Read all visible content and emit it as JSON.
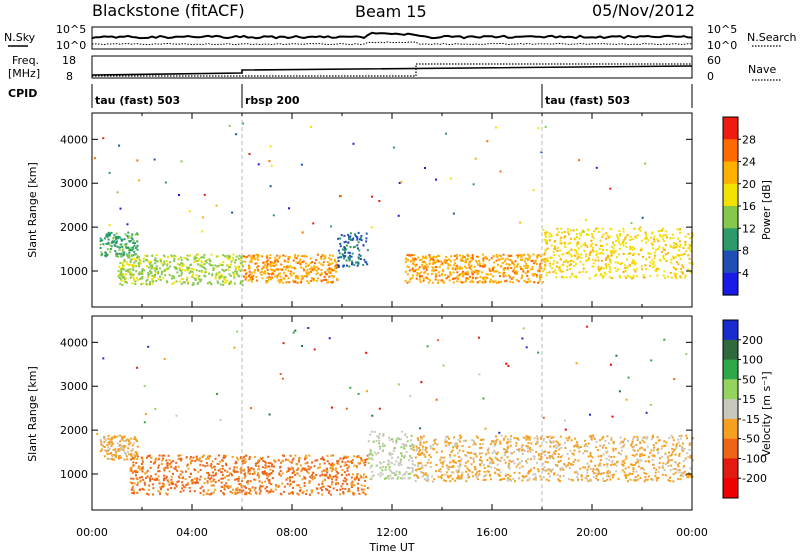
{
  "header": {
    "station": "Blackstone (fitACF)",
    "beam": "Beam 15",
    "date": "05/Nov/2012"
  },
  "strip_labels": {
    "nsky": "N.Sky",
    "nsearch": "N.Search",
    "freq_line1": "Freq.",
    "freq_line2": "[MHz]",
    "nave": "Nave",
    "cpid": "CPID",
    "noise_ticks_left": [
      "10^5",
      "10^0"
    ],
    "noise_ticks_right": [
      "10^5",
      "10^0"
    ],
    "freq_ticks": [
      "18",
      "8"
    ],
    "nave_ticks": [
      "60",
      "0"
    ]
  },
  "cpid_segments": [
    {
      "start_hour": 0,
      "end_hour": 6,
      "label": "tau (fast) 503"
    },
    {
      "start_hour": 6,
      "end_hour": 18,
      "label": "rbsp 200"
    },
    {
      "start_hour": 18,
      "end_hour": 24,
      "label": "tau (fast) 503"
    }
  ],
  "chart_data": [
    {
      "type": "heatmap",
      "title": "",
      "xlabel": "Time UT",
      "ylabel": "Slant Range [km]",
      "x_unit": "hour UT",
      "xlim": [
        0,
        24
      ],
      "ylim": [
        180,
        4600
      ],
      "x_ticks": [
        "00:00",
        "04:00",
        "08:00",
        "12:00",
        "16:00",
        "20:00",
        "00:00"
      ],
      "y_ticks": [
        "1000",
        "2000",
        "3000",
        "4000"
      ],
      "colorbar": {
        "label": "Power [dB]",
        "levels": [
          "28",
          "24",
          "20",
          "16",
          "12",
          "8",
          "4"
        ],
        "colors": [
          "#ee1c10",
          "#ff6a00",
          "#ffb000",
          "#f2e200",
          "#86c94a",
          "#2c9b6b",
          "#1f4fb4",
          "#1a1ae6"
        ]
      },
      "echo_bands": [
        {
          "hour_start": 0.3,
          "hour_end": 1.8,
          "range_low": 1350,
          "range_high": 1900,
          "value": "12"
        },
        {
          "hour_start": 1.0,
          "hour_end": 6.0,
          "range_low": 700,
          "range_high": 1400,
          "value": "16"
        },
        {
          "hour_start": 6.0,
          "hour_end": 9.8,
          "range_low": 750,
          "range_high": 1400,
          "value": "24"
        },
        {
          "hour_start": 9.8,
          "hour_end": 11.0,
          "range_low": 1100,
          "range_high": 1900,
          "value": "8"
        },
        {
          "hour_start": 12.5,
          "hour_end": 18.0,
          "range_low": 750,
          "range_high": 1400,
          "value": "24"
        },
        {
          "hour_start": 18.0,
          "hour_end": 24.0,
          "range_low": 850,
          "range_high": 2000,
          "value": "20"
        }
      ]
    },
    {
      "type": "heatmap",
      "title": "",
      "xlabel": "Time UT",
      "ylabel": "Slant Range [km]",
      "x_unit": "hour UT",
      "xlim": [
        0,
        24
      ],
      "ylim": [
        180,
        4600
      ],
      "x_ticks": [
        "00:00",
        "04:00",
        "08:00",
        "12:00",
        "16:00",
        "20:00",
        "00:00"
      ],
      "y_ticks": [
        "1000",
        "2000",
        "3000",
        "4000"
      ],
      "colorbar": {
        "label": "Velocity [m s⁻¹]",
        "levels": [
          "200",
          "100",
          "50",
          "15",
          "-15",
          "-50",
          "-100",
          "-200"
        ],
        "colors": [
          "#1a2bd0",
          "#2f6a3e",
          "#2fa84a",
          "#93d35e",
          "#c8c8be",
          "#f5a020",
          "#f06418",
          "#e21a10",
          "#ee0000"
        ]
      },
      "echo_bands": [
        {
          "hour_start": 0.3,
          "hour_end": 1.8,
          "range_low": 1350,
          "range_high": 1900,
          "value": "-15"
        },
        {
          "hour_start": 1.5,
          "hour_end": 11.0,
          "range_low": 550,
          "range_high": 1450,
          "value": "-50"
        },
        {
          "hour_start": 11.0,
          "hour_end": 12.8,
          "range_low": 900,
          "range_high": 2000,
          "value": "15"
        },
        {
          "hour_start": 12.8,
          "hour_end": 24.0,
          "range_low": 850,
          "range_high": 1900,
          "value": "-15"
        }
      ]
    }
  ]
}
